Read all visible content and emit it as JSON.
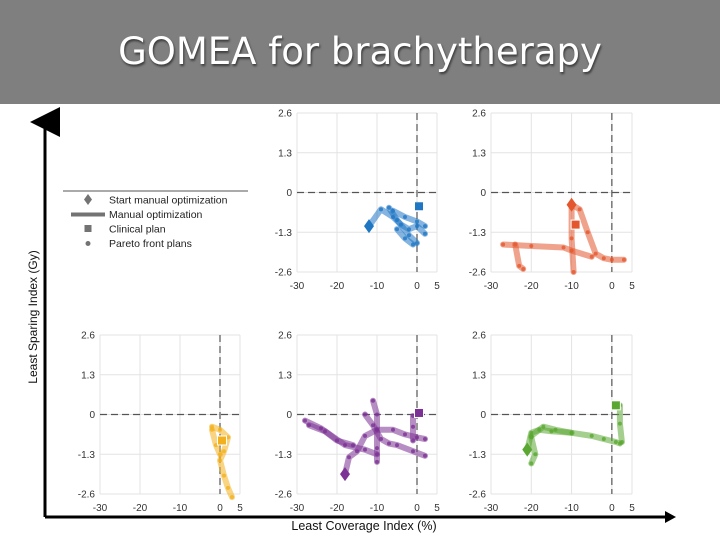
{
  "slide": {
    "title": "GOMEA for brachytherapy",
    "x_axis_label": "Least Coverage Index (%)",
    "y_axis_label": "Least Sparing Index (Gy)"
  },
  "colors": {
    "title_bar": "#7f7f7f",
    "blue": "#1f77c4",
    "orange": "#e4572e",
    "yellow": "#f2b01e",
    "purple": "#7b3294",
    "green": "#5aa832",
    "legend_gray": "#737373"
  },
  "legend": {
    "items": [
      {
        "label": "Start manual optimization",
        "marker": "diamond"
      },
      {
        "label": "Manual optimization",
        "marker": "thick-line"
      },
      {
        "label": "Clinical plan",
        "marker": "square"
      },
      {
        "label": "Pareto front plans",
        "marker": "dot"
      }
    ]
  },
  "chart_data": [
    {
      "type": "scatter",
      "panel": "top-middle",
      "color": "blue",
      "xlim": [
        -30,
        5
      ],
      "ylim": [
        -2.6,
        2.6
      ],
      "xticks": [
        "-30",
        "-20",
        "-10",
        "0",
        "5"
      ],
      "yticks": [
        "2.6",
        "1.3",
        "0",
        "-1.3",
        "-2.6"
      ],
      "start": {
        "x": -12,
        "y": -1.1
      },
      "clinical": {
        "x": 0.5,
        "y": -0.45
      },
      "paths": [
        [
          [
            -12,
            -1.1
          ],
          [
            -9,
            -0.55
          ],
          [
            -6,
            -0.8
          ],
          [
            -4,
            -1.05
          ],
          [
            -2,
            -1.2
          ],
          [
            0,
            -1.1
          ],
          [
            2,
            -1.35
          ]
        ],
        [
          [
            -7,
            -0.5
          ],
          [
            -5,
            -0.9
          ],
          [
            -2,
            -1.4
          ],
          [
            0,
            -1.65
          ]
        ],
        [
          [
            -6,
            -0.6
          ],
          [
            -3,
            -0.8
          ],
          [
            0,
            -0.95
          ],
          [
            2,
            -1.1
          ]
        ],
        [
          [
            -5,
            -1.2
          ],
          [
            -3,
            -1.5
          ],
          [
            -1,
            -1.7
          ]
        ]
      ]
    },
    {
      "type": "scatter",
      "panel": "top-right",
      "color": "orange",
      "xlim": [
        -30,
        5
      ],
      "ylim": [
        -2.6,
        2.6
      ],
      "xticks": [
        "-30",
        "-20",
        "-10",
        "0",
        "5"
      ],
      "yticks": [
        "2.6",
        "1.3",
        "0",
        "-1.3",
        "-2.6"
      ],
      "start": {
        "x": -10,
        "y": -0.4
      },
      "clinical": {
        "x": -9,
        "y": -1.05
      },
      "paths": [
        [
          [
            -10,
            -0.4
          ],
          [
            -8,
            -0.55
          ],
          [
            -6,
            -1.3
          ],
          [
            -4,
            -2.0
          ],
          [
            -2,
            -2.15
          ],
          [
            0,
            -2.2
          ],
          [
            3,
            -2.2
          ]
        ],
        [
          [
            -10,
            -0.4
          ],
          [
            -10,
            -1.5
          ],
          [
            -9.5,
            -2.6
          ]
        ],
        [
          [
            -27,
            -1.7
          ],
          [
            -20,
            -1.75
          ],
          [
            -12,
            -1.8
          ],
          [
            -10,
            -1.9
          ],
          [
            -5,
            -2.1
          ]
        ],
        [
          [
            -24,
            -1.7
          ],
          [
            -23,
            -2.4
          ],
          [
            -22,
            -2.5
          ]
        ]
      ]
    },
    {
      "type": "scatter",
      "panel": "bottom-left",
      "color": "yellow",
      "xlim": [
        -30,
        5
      ],
      "ylim": [
        -2.6,
        2.6
      ],
      "xticks": [
        "-30",
        "-20",
        "-10",
        "0",
        "5"
      ],
      "yticks": [
        "2.6",
        "1.3",
        "0",
        "-1.3",
        "-2.6"
      ],
      "clinical": {
        "x": 0.5,
        "y": -0.85
      },
      "paths": [
        [
          [
            -2,
            -0.4
          ],
          [
            0,
            -0.5
          ],
          [
            2,
            -0.75
          ],
          [
            1,
            -1.2
          ],
          [
            0,
            -1.5
          ],
          [
            1,
            -2.0
          ],
          [
            2,
            -2.4
          ],
          [
            3,
            -2.7
          ]
        ],
        [
          [
            -2,
            -0.5
          ],
          [
            -1,
            -1.0
          ],
          [
            0,
            -1.3
          ]
        ]
      ]
    },
    {
      "type": "scatter",
      "panel": "bottom-middle",
      "color": "purple",
      "xlim": [
        -30,
        5
      ],
      "ylim": [
        -2.6,
        2.6
      ],
      "xticks": [
        "-30",
        "-20",
        "-10",
        "0",
        "5"
      ],
      "yticks": [
        "2.6",
        "1.3",
        "0",
        "-1.3",
        "-2.6"
      ],
      "start": {
        "x": -18,
        "y": -1.95
      },
      "clinical": {
        "x": 0.5,
        "y": 0.05
      },
      "paths": [
        [
          [
            -18,
            -1.95
          ],
          [
            -17,
            -1.4
          ],
          [
            -15,
            -1.2
          ],
          [
            -13,
            -0.7
          ],
          [
            -10,
            -0.5
          ],
          [
            -6,
            -0.5
          ],
          [
            -3,
            -0.65
          ],
          [
            0,
            -0.75
          ],
          [
            2,
            -0.8
          ]
        ],
        [
          [
            -28,
            -0.2
          ],
          [
            -24,
            -0.45
          ],
          [
            -18,
            -1.0
          ],
          [
            -13,
            -1.15
          ],
          [
            -10,
            -1.3
          ]
        ],
        [
          [
            -13,
            0.0
          ],
          [
            -11,
            -0.35
          ],
          [
            -9,
            -0.8
          ],
          [
            -7,
            -0.95
          ],
          [
            -5,
            -1.0
          ],
          [
            -1,
            -1.2
          ],
          [
            2,
            -1.35
          ]
        ],
        [
          [
            -11,
            0.45
          ],
          [
            -10,
            0.0
          ],
          [
            -10,
            -0.5
          ],
          [
            -10,
            -1.1
          ],
          [
            -10,
            -1.55
          ]
        ],
        [
          [
            -27,
            -0.35
          ],
          [
            -23,
            -0.55
          ],
          [
            -20,
            -0.85
          ],
          [
            -16,
            -1.0
          ]
        ],
        [
          [
            -1,
            -0.05
          ],
          [
            -1,
            -0.4
          ],
          [
            -1,
            -0.85
          ]
        ]
      ]
    },
    {
      "type": "scatter",
      "panel": "bottom-right",
      "color": "green",
      "xlim": [
        -30,
        5
      ],
      "ylim": [
        -2.6,
        2.6
      ],
      "xticks": [
        "-30",
        "-20",
        "-10",
        "0",
        "5"
      ],
      "yticks": [
        "2.6",
        "1.3",
        "0",
        "-1.3",
        "-2.6"
      ],
      "start": {
        "x": -21,
        "y": -1.15
      },
      "clinical": {
        "x": 1,
        "y": 0.3
      },
      "paths": [
        [
          [
            -21,
            -1.15
          ],
          [
            -20,
            -0.6
          ],
          [
            -18,
            -0.5
          ],
          [
            -15,
            -0.55
          ],
          [
            -10,
            -0.6
          ],
          [
            -5,
            -0.7
          ],
          [
            -2,
            -0.8
          ],
          [
            1,
            -0.9
          ],
          [
            2,
            -0.95
          ]
        ],
        [
          [
            -20,
            -0.7
          ],
          [
            -17,
            -0.4
          ],
          [
            -14,
            -0.5
          ],
          [
            -10,
            -0.6
          ]
        ],
        [
          [
            -20,
            -0.75
          ],
          [
            -19,
            -1.3
          ],
          [
            -20,
            -1.6
          ]
        ],
        [
          [
            2,
            0.3
          ],
          [
            2,
            -0.3
          ],
          [
            2.5,
            -0.9
          ]
        ]
      ]
    }
  ]
}
